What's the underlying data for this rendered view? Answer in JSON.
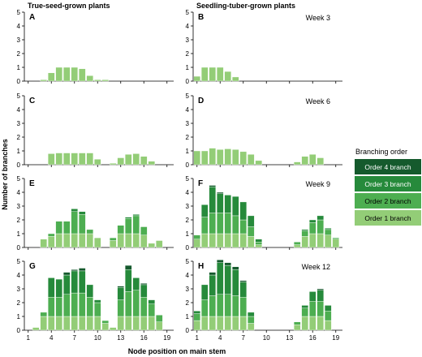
{
  "col_titles": [
    "True-seed-grown plants",
    "Seedling-tuber-grown plants"
  ],
  "ylabel": "Number of branches",
  "xlabel": "Node position on main stem",
  "legend": {
    "title": "Branching order",
    "items": [
      {
        "label": "Order 4 branch",
        "color": "#155a2d"
      },
      {
        "label": "Order 3 branch",
        "color": "#268a3b"
      },
      {
        "label": "Order 2 branch",
        "color": "#4dae51"
      },
      {
        "label": "Order 1 branch",
        "color": "#93cd77"
      }
    ]
  },
  "chart_data": [
    {
      "type": "bar",
      "panel": "A",
      "week": "Week 3",
      "stacked": true,
      "x": [
        1,
        2,
        3,
        4,
        5,
        6,
        7,
        8,
        9,
        10,
        11,
        12,
        13,
        14,
        15,
        16,
        17,
        18,
        19
      ],
      "ylim": [
        0,
        5
      ],
      "series": [
        {
          "name": "Order 1 branch",
          "values": [
            0,
            0,
            0.1,
            0.6,
            1,
            1,
            1,
            0.9,
            0.4,
            0.1,
            0.1,
            0,
            0,
            0,
            0,
            0,
            0,
            0,
            0
          ]
        },
        {
          "name": "Order 2 branch",
          "values": [
            0,
            0,
            0,
            0,
            0,
            0,
            0,
            0,
            0,
            0,
            0,
            0,
            0,
            0,
            0,
            0,
            0,
            0,
            0
          ]
        },
        {
          "name": "Order 3 branch",
          "values": [
            0,
            0,
            0,
            0,
            0,
            0,
            0,
            0,
            0,
            0,
            0,
            0,
            0,
            0,
            0,
            0,
            0,
            0,
            0
          ]
        },
        {
          "name": "Order 4 branch",
          "values": [
            0,
            0,
            0,
            0,
            0,
            0,
            0,
            0,
            0,
            0,
            0,
            0,
            0,
            0,
            0,
            0,
            0,
            0,
            0
          ]
        }
      ]
    },
    {
      "type": "bar",
      "panel": "B",
      "week": "Week 3",
      "stacked": true,
      "x": [
        1,
        2,
        3,
        4,
        5,
        6,
        7,
        8,
        9,
        10,
        11,
        12,
        13,
        14,
        15,
        16,
        17,
        18,
        19
      ],
      "ylim": [
        0,
        5
      ],
      "series": [
        {
          "name": "Order 1 branch",
          "values": [
            0.35,
            1,
            1,
            1,
            0.7,
            0.3,
            0,
            0,
            0,
            0,
            0,
            0,
            0,
            0,
            0,
            0,
            0,
            0,
            0
          ]
        },
        {
          "name": "Order 2 branch",
          "values": [
            0,
            0,
            0,
            0,
            0,
            0,
            0,
            0,
            0,
            0,
            0,
            0,
            0,
            0,
            0,
            0,
            0,
            0,
            0
          ]
        },
        {
          "name": "Order 3 branch",
          "values": [
            0,
            0,
            0,
            0,
            0,
            0,
            0,
            0,
            0,
            0,
            0,
            0,
            0,
            0,
            0,
            0,
            0,
            0,
            0
          ]
        },
        {
          "name": "Order 4 branch",
          "values": [
            0,
            0,
            0,
            0,
            0,
            0,
            0,
            0,
            0,
            0,
            0,
            0,
            0,
            0,
            0,
            0,
            0,
            0,
            0
          ]
        }
      ]
    },
    {
      "type": "bar",
      "panel": "C",
      "week": "Week 6",
      "stacked": true,
      "x": [
        1,
        2,
        3,
        4,
        5,
        6,
        7,
        8,
        9,
        10,
        11,
        12,
        13,
        14,
        15,
        16,
        17,
        18,
        19
      ],
      "ylim": [
        0,
        5
      ],
      "series": [
        {
          "name": "Order 1 branch",
          "values": [
            0,
            0,
            0,
            0.8,
            0.85,
            0.85,
            0.85,
            0.85,
            0.85,
            0.4,
            0,
            0.1,
            0.5,
            0.75,
            0.8,
            0.6,
            0.25,
            0,
            0
          ]
        },
        {
          "name": "Order 2 branch",
          "values": [
            0,
            0,
            0,
            0,
            0,
            0,
            0,
            0,
            0,
            0,
            0,
            0,
            0,
            0,
            0,
            0,
            0,
            0,
            0
          ]
        },
        {
          "name": "Order 3 branch",
          "values": [
            0,
            0,
            0,
            0,
            0,
            0,
            0,
            0,
            0,
            0,
            0,
            0,
            0,
            0,
            0,
            0,
            0,
            0,
            0
          ]
        },
        {
          "name": "Order 4 branch",
          "values": [
            0,
            0,
            0,
            0,
            0,
            0,
            0,
            0,
            0,
            0,
            0,
            0,
            0,
            0,
            0,
            0,
            0,
            0,
            0
          ]
        }
      ]
    },
    {
      "type": "bar",
      "panel": "D",
      "week": "Week 6",
      "stacked": true,
      "x": [
        1,
        2,
        3,
        4,
        5,
        6,
        7,
        8,
        9,
        10,
        11,
        12,
        13,
        14,
        15,
        16,
        17,
        18,
        19
      ],
      "ylim": [
        0,
        5
      ],
      "series": [
        {
          "name": "Order 1 branch",
          "values": [
            1,
            1,
            1.2,
            1.1,
            1.15,
            1.1,
            0.95,
            0.75,
            0.3,
            0,
            0,
            0,
            0,
            0.2,
            0.6,
            0.75,
            0.5,
            0,
            0
          ]
        },
        {
          "name": "Order 2 branch",
          "values": [
            0,
            0,
            0,
            0,
            0,
            0,
            0,
            0,
            0,
            0,
            0,
            0,
            0,
            0,
            0,
            0,
            0,
            0,
            0
          ]
        },
        {
          "name": "Order 3 branch",
          "values": [
            0,
            0,
            0,
            0,
            0,
            0,
            0,
            0,
            0,
            0,
            0,
            0,
            0,
            0,
            0,
            0,
            0,
            0,
            0
          ]
        },
        {
          "name": "Order 4 branch",
          "values": [
            0,
            0,
            0,
            0,
            0,
            0,
            0,
            0,
            0,
            0,
            0,
            0,
            0,
            0,
            0,
            0,
            0,
            0,
            0
          ]
        }
      ]
    },
    {
      "type": "bar",
      "panel": "E",
      "week": "Week 9",
      "stacked": true,
      "x": [
        1,
        2,
        3,
        4,
        5,
        6,
        7,
        8,
        9,
        10,
        11,
        12,
        13,
        14,
        15,
        16,
        17,
        18,
        19
      ],
      "ylim": [
        0,
        5
      ],
      "series": [
        {
          "name": "Order 1 branch",
          "values": [
            0,
            0,
            0.6,
            0.8,
            1,
            1,
            1,
            1,
            1,
            0.7,
            0,
            0.5,
            1,
            1,
            1,
            0.9,
            0.3,
            0.5,
            0
          ]
        },
        {
          "name": "Order 2 branch",
          "values": [
            0,
            0,
            0,
            0.2,
            0.9,
            0.9,
            1.6,
            1.4,
            0.3,
            0,
            0,
            0.2,
            0.6,
            1.1,
            1.3,
            0.6,
            0,
            0,
            0
          ]
        },
        {
          "name": "Order 3 branch",
          "values": [
            0,
            0,
            0,
            0,
            0,
            0,
            0.2,
            0.2,
            0,
            0,
            0,
            0,
            0,
            0.1,
            0.1,
            0,
            0,
            0,
            0
          ]
        },
        {
          "name": "Order 4 branch",
          "values": [
            0,
            0,
            0,
            0,
            0,
            0,
            0,
            0,
            0,
            0,
            0,
            0,
            0,
            0,
            0,
            0,
            0,
            0,
            0
          ]
        }
      ]
    },
    {
      "type": "bar",
      "panel": "F",
      "week": "Week 9",
      "stacked": true,
      "x": [
        1,
        2,
        3,
        4,
        5,
        6,
        7,
        8,
        9,
        10,
        11,
        12,
        13,
        14,
        15,
        16,
        17,
        18,
        19
      ],
      "ylim": [
        0,
        5
      ],
      "series": [
        {
          "name": "Order 1 branch",
          "values": [
            0.6,
            1,
            1,
            1,
            1,
            1,
            1,
            0.8,
            0.2,
            0,
            0,
            0,
            0,
            0.2,
            0.8,
            1,
            1,
            0.9,
            0.6
          ]
        },
        {
          "name": "Order 2 branch",
          "values": [
            0.3,
            1.2,
            1.5,
            1.5,
            1.5,
            1.3,
            1,
            0.7,
            0.2,
            0,
            0,
            0,
            0,
            0.2,
            0.4,
            0.8,
            1,
            0.4,
            0.1
          ]
        },
        {
          "name": "Order 3 branch",
          "values": [
            0,
            0.9,
            1.9,
            1.4,
            1.3,
            1.4,
            1.3,
            0.8,
            0.2,
            0,
            0,
            0,
            0,
            0,
            0.1,
            0.2,
            0.3,
            0.1,
            0
          ]
        },
        {
          "name": "Order 4 branch",
          "values": [
            0,
            0,
            0.1,
            0.1,
            0,
            0,
            0,
            0,
            0,
            0,
            0,
            0,
            0,
            0,
            0,
            0,
            0,
            0,
            0
          ]
        }
      ]
    },
    {
      "type": "bar",
      "panel": "G",
      "week": "Week 12",
      "stacked": true,
      "x": [
        1,
        2,
        3,
        4,
        5,
        6,
        7,
        8,
        9,
        10,
        11,
        12,
        13,
        14,
        15,
        16,
        17,
        18,
        19
      ],
      "ylim": [
        0,
        5
      ],
      "series": [
        {
          "name": "Order 1 branch",
          "values": [
            0,
            0.2,
            1,
            1,
            1,
            1,
            1,
            1,
            1,
            1,
            0.5,
            0.2,
            1,
            1,
            1,
            1,
            1,
            0.6,
            0
          ]
        },
        {
          "name": "Order 2 branch",
          "values": [
            0,
            0,
            0.3,
            1.4,
            1.4,
            1.6,
            1.7,
            1.7,
            1.4,
            1,
            0.2,
            0,
            1.2,
            1.8,
            1.9,
            1.4,
            0.9,
            0.5,
            0
          ]
        },
        {
          "name": "Order 3 branch",
          "values": [
            0,
            0,
            0,
            1.4,
            1.3,
            1.4,
            1.6,
            1.6,
            0.9,
            0.2,
            0,
            0,
            0.9,
            1.6,
            0.9,
            0.9,
            0.3,
            0,
            0
          ]
        },
        {
          "name": "Order 4 branch",
          "values": [
            0,
            0,
            0,
            0,
            0,
            0.2,
            0.1,
            0.2,
            0,
            0,
            0,
            0,
            0.1,
            0.3,
            0,
            0.1,
            0,
            0,
            0
          ]
        }
      ]
    },
    {
      "type": "bar",
      "panel": "H",
      "week": "Week 12",
      "stacked": true,
      "x": [
        1,
        2,
        3,
        4,
        5,
        6,
        7,
        8,
        9,
        10,
        11,
        12,
        13,
        14,
        15,
        16,
        17,
        18,
        19
      ],
      "ylim": [
        0,
        5
      ],
      "series": [
        {
          "name": "Order 1 branch",
          "values": [
            0.7,
            1,
            1,
            1,
            1,
            1,
            1,
            0.5,
            0,
            0,
            0,
            0,
            0,
            0.4,
            1,
            1,
            1,
            0.7,
            0
          ]
        },
        {
          "name": "Order 2 branch",
          "values": [
            0.5,
            1.2,
            1.5,
            1.6,
            1.6,
            1.5,
            1.4,
            0.5,
            0,
            0,
            0,
            0,
            0,
            0.2,
            0.6,
            1.1,
            1.1,
            0.7,
            0
          ]
        },
        {
          "name": "Order 3 branch",
          "values": [
            0.2,
            1.1,
            1.5,
            2.3,
            2.1,
            1.9,
            1.1,
            0.3,
            0,
            0,
            0,
            0,
            0,
            0,
            0.2,
            0.7,
            0.8,
            0.4,
            0
          ]
        },
        {
          "name": "Order 4 branch",
          "values": [
            0,
            0,
            0.2,
            0.2,
            0.2,
            0.2,
            0.1,
            0,
            0,
            0,
            0,
            0,
            0,
            0,
            0,
            0,
            0.1,
            0,
            0
          ]
        }
      ]
    }
  ],
  "x_ticks": [
    1,
    4,
    7,
    10,
    13,
    16,
    19
  ],
  "y_ticks": [
    0,
    1,
    2,
    3,
    4,
    5
  ]
}
